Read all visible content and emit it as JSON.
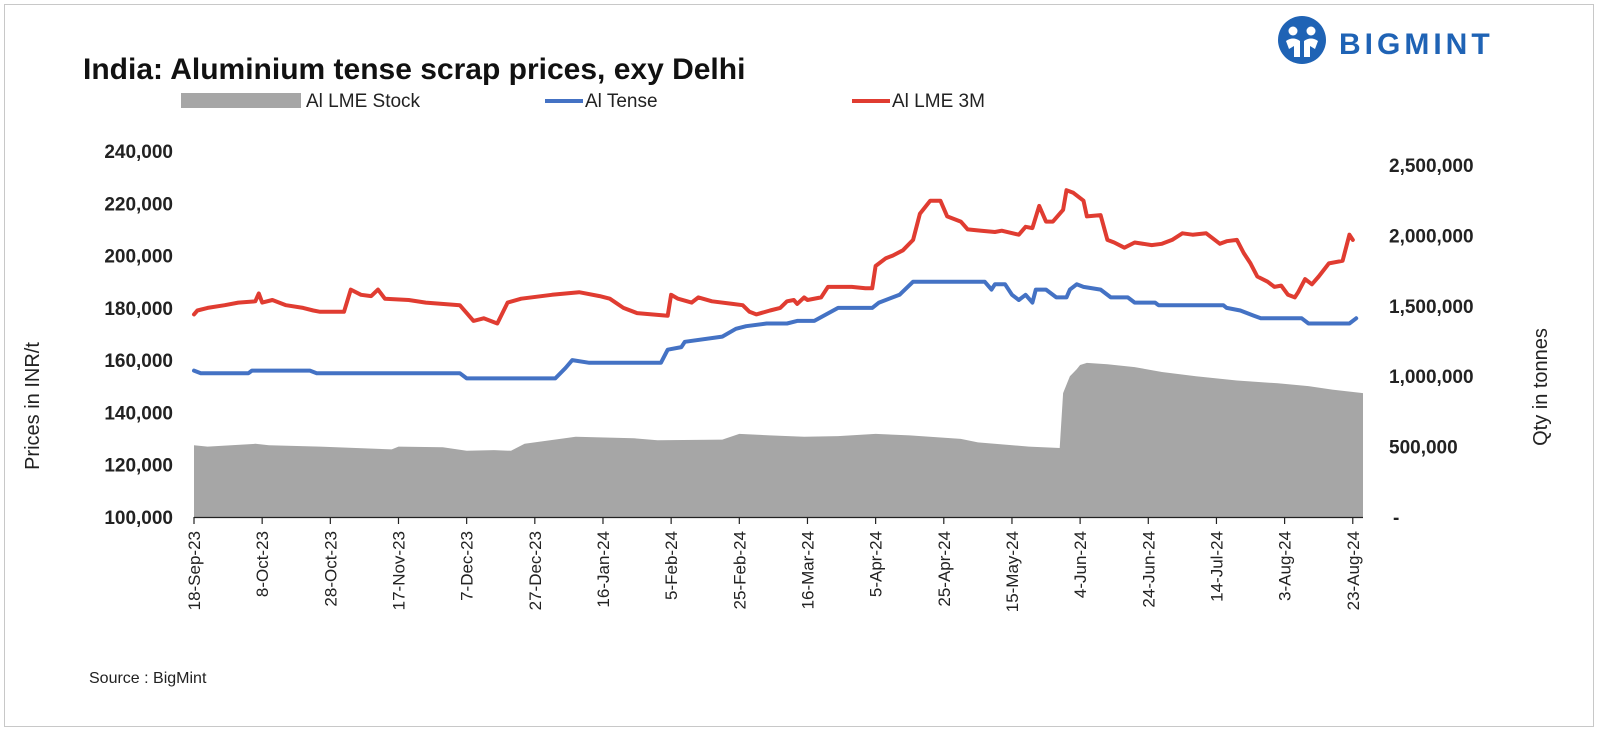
{
  "chart_data": {
    "type": "line",
    "title": "India: Aluminium tense scrap prices, exy Delhi",
    "source": "Source : BigMint",
    "brand": "BIGMINT",
    "y_left": {
      "label": "Prices in INR/t",
      "range": [
        100000,
        240000
      ],
      "ticks": [
        "100,000",
        "120,000",
        "140,000",
        "160,000",
        "180,000",
        "200,000",
        "220,000",
        "240,000"
      ]
    },
    "y_right": {
      "label": "Qty in tonnes",
      "range": [
        0,
        2600000
      ],
      "ticks": [
        {
          "value": 0,
          "label": "-"
        },
        {
          "value": 500000,
          "label": "500,000"
        },
        {
          "value": 1000000,
          "label": "1,000,000"
        },
        {
          "value": 1500000,
          "label": "1,500,000"
        },
        {
          "value": 2000000,
          "label": "2,000,000"
        },
        {
          "value": 2500000,
          "label": "2,500,000"
        }
      ]
    },
    "x_range": [
      "2023-09-18",
      "2024-08-26"
    ],
    "x_ticks": [
      {
        "date": "2023-09-18",
        "label": "18-Sep-23"
      },
      {
        "date": "2023-10-08",
        "label": "8-Oct-23"
      },
      {
        "date": "2023-10-28",
        "label": "28-Oct-23"
      },
      {
        "date": "2023-11-17",
        "label": "17-Nov-23"
      },
      {
        "date": "2023-12-07",
        "label": "7-Dec-23"
      },
      {
        "date": "2023-12-27",
        "label": "27-Dec-23"
      },
      {
        "date": "2024-01-16",
        "label": "16-Jan-24"
      },
      {
        "date": "2024-02-05",
        "label": "5-Feb-24"
      },
      {
        "date": "2024-02-25",
        "label": "25-Feb-24"
      },
      {
        "date": "2024-03-16",
        "label": "16-Mar-24"
      },
      {
        "date": "2024-04-05",
        "label": "5-Apr-24"
      },
      {
        "date": "2024-04-25",
        "label": "25-Apr-24"
      },
      {
        "date": "2024-05-15",
        "label": "15-May-24"
      },
      {
        "date": "2024-06-04",
        "label": "4-Jun-24"
      },
      {
        "date": "2024-06-24",
        "label": "24-Jun-24"
      },
      {
        "date": "2024-07-14",
        "label": "14-Jul-24"
      },
      {
        "date": "2024-08-03",
        "label": "3-Aug-24"
      },
      {
        "date": "2024-08-23",
        "label": "23-Aug-24"
      }
    ],
    "series": [
      {
        "name": "Al LME Stock",
        "type": "area",
        "axis": "right",
        "color": "#a6a6a6",
        "points": [
          [
            "2023-09-18",
            510000
          ],
          [
            "2023-09-22",
            500000
          ],
          [
            "2023-10-06",
            520000
          ],
          [
            "2023-10-10",
            510000
          ],
          [
            "2023-10-25",
            500000
          ],
          [
            "2023-11-15",
            480000
          ],
          [
            "2023-11-17",
            500000
          ],
          [
            "2023-11-30",
            495000
          ],
          [
            "2023-12-07",
            470000
          ],
          [
            "2023-12-15",
            475000
          ],
          [
            "2023-12-20",
            470000
          ],
          [
            "2023-12-24",
            520000
          ],
          [
            "2024-01-08",
            570000
          ],
          [
            "2024-01-25",
            560000
          ],
          [
            "2024-02-01",
            545000
          ],
          [
            "2024-02-20",
            550000
          ],
          [
            "2024-02-25",
            590000
          ],
          [
            "2024-03-05",
            580000
          ],
          [
            "2024-03-15",
            570000
          ],
          [
            "2024-03-25",
            575000
          ],
          [
            "2024-04-05",
            590000
          ],
          [
            "2024-04-15",
            580000
          ],
          [
            "2024-04-30",
            555000
          ],
          [
            "2024-05-05",
            530000
          ],
          [
            "2024-05-20",
            500000
          ],
          [
            "2024-05-29",
            490000
          ],
          [
            "2024-05-30",
            880000
          ],
          [
            "2024-06-01",
            1000000
          ],
          [
            "2024-06-03",
            1050000
          ],
          [
            "2024-06-04",
            1080000
          ],
          [
            "2024-06-06",
            1095000
          ],
          [
            "2024-06-12",
            1085000
          ],
          [
            "2024-06-20",
            1065000
          ],
          [
            "2024-06-28",
            1030000
          ],
          [
            "2024-07-08",
            1000000
          ],
          [
            "2024-07-20",
            970000
          ],
          [
            "2024-08-01",
            950000
          ],
          [
            "2024-08-10",
            930000
          ],
          [
            "2024-08-17",
            905000
          ],
          [
            "2024-08-26",
            880000
          ]
        ]
      },
      {
        "name": "Al Tense",
        "type": "line",
        "axis": "left",
        "color": "#4472c4",
        "points": [
          [
            "2023-09-18",
            156000
          ],
          [
            "2023-09-20",
            155000
          ],
          [
            "2023-10-04",
            155000
          ],
          [
            "2023-10-05",
            156000
          ],
          [
            "2023-10-22",
            156000
          ],
          [
            "2023-10-24",
            155000
          ],
          [
            "2023-12-05",
            155000
          ],
          [
            "2023-12-07",
            153000
          ],
          [
            "2024-01-02",
            153000
          ],
          [
            "2024-01-05",
            157000
          ],
          [
            "2024-01-07",
            160000
          ],
          [
            "2024-01-12",
            159000
          ],
          [
            "2024-02-02",
            159000
          ],
          [
            "2024-02-04",
            164000
          ],
          [
            "2024-02-08",
            165000
          ],
          [
            "2024-02-09",
            167000
          ],
          [
            "2024-02-20",
            169000
          ],
          [
            "2024-02-24",
            172000
          ],
          [
            "2024-02-27",
            173000
          ],
          [
            "2024-03-04",
            174000
          ],
          [
            "2024-03-10",
            174000
          ],
          [
            "2024-03-13",
            175000
          ],
          [
            "2024-03-18",
            175000
          ],
          [
            "2024-03-25",
            180000
          ],
          [
            "2024-04-04",
            180000
          ],
          [
            "2024-04-06",
            182000
          ],
          [
            "2024-04-12",
            185000
          ],
          [
            "2024-04-16",
            190000
          ],
          [
            "2024-04-17",
            190000
          ],
          [
            "2024-05-07",
            190000
          ],
          [
            "2024-05-09",
            187000
          ],
          [
            "2024-05-10",
            189000
          ],
          [
            "2024-05-13",
            189000
          ],
          [
            "2024-05-15",
            185000
          ],
          [
            "2024-05-17",
            183000
          ],
          [
            "2024-05-19",
            185000
          ],
          [
            "2024-05-21",
            182000
          ],
          [
            "2024-05-22",
            187000
          ],
          [
            "2024-05-25",
            187000
          ],
          [
            "2024-05-28",
            184000
          ],
          [
            "2024-05-31",
            184000
          ],
          [
            "2024-06-01",
            187000
          ],
          [
            "2024-06-03",
            189000
          ],
          [
            "2024-06-05",
            188000
          ],
          [
            "2024-06-10",
            187000
          ],
          [
            "2024-06-13",
            184000
          ],
          [
            "2024-06-18",
            184000
          ],
          [
            "2024-06-20",
            182000
          ],
          [
            "2024-06-26",
            182000
          ],
          [
            "2024-06-27",
            181000
          ],
          [
            "2024-07-16",
            181000
          ],
          [
            "2024-07-17",
            180000
          ],
          [
            "2024-07-21",
            179000
          ],
          [
            "2024-07-25",
            177000
          ],
          [
            "2024-07-27",
            176000
          ],
          [
            "2024-08-08",
            176000
          ],
          [
            "2024-08-10",
            174000
          ],
          [
            "2024-08-22",
            174000
          ],
          [
            "2024-08-24",
            176000
          ]
        ]
      },
      {
        "name": "Al LME 3M",
        "type": "line",
        "axis": "left",
        "color": "#e03c31",
        "points": [
          [
            "2023-09-18",
            177500
          ],
          [
            "2023-09-19",
            179000
          ],
          [
            "2023-09-22",
            180000
          ],
          [
            "2023-09-27",
            181000
          ],
          [
            "2023-10-01",
            182000
          ],
          [
            "2023-10-06",
            182500
          ],
          [
            "2023-10-07",
            185500
          ],
          [
            "2023-10-08",
            182000
          ],
          [
            "2023-10-11",
            183000
          ],
          [
            "2023-10-13",
            182000
          ],
          [
            "2023-10-15",
            181000
          ],
          [
            "2023-10-20",
            180000
          ],
          [
            "2023-10-23",
            179000
          ],
          [
            "2023-10-25",
            178500
          ],
          [
            "2023-11-01",
            178500
          ],
          [
            "2023-11-03",
            187000
          ],
          [
            "2023-11-06",
            185000
          ],
          [
            "2023-11-09",
            184500
          ],
          [
            "2023-11-11",
            187000
          ],
          [
            "2023-11-13",
            183500
          ],
          [
            "2023-11-20",
            183000
          ],
          [
            "2023-11-25",
            182000
          ],
          [
            "2023-12-05",
            181000
          ],
          [
            "2023-12-07",
            178000
          ],
          [
            "2023-12-09",
            175000
          ],
          [
            "2023-12-12",
            176000
          ],
          [
            "2023-12-16",
            174000
          ],
          [
            "2023-12-19",
            182000
          ],
          [
            "2023-12-23",
            183500
          ],
          [
            "2024-01-01",
            185000
          ],
          [
            "2024-01-09",
            186000
          ],
          [
            "2024-01-15",
            184500
          ],
          [
            "2024-01-18",
            183500
          ],
          [
            "2024-01-22",
            180000
          ],
          [
            "2024-01-26",
            178000
          ],
          [
            "2024-02-04",
            177000
          ],
          [
            "2024-02-05",
            185000
          ],
          [
            "2024-02-07",
            183500
          ],
          [
            "2024-02-11",
            182000
          ],
          [
            "2024-02-13",
            184000
          ],
          [
            "2024-02-17",
            182500
          ],
          [
            "2024-02-23",
            181500
          ],
          [
            "2024-02-26",
            181000
          ],
          [
            "2024-02-28",
            178500
          ],
          [
            "2024-03-01",
            177500
          ],
          [
            "2024-03-05",
            179000
          ],
          [
            "2024-03-08",
            180000
          ],
          [
            "2024-03-10",
            182500
          ],
          [
            "2024-03-12",
            183000
          ],
          [
            "2024-03-13",
            181500
          ],
          [
            "2024-03-15",
            184000
          ],
          [
            "2024-03-16",
            183000
          ],
          [
            "2024-03-20",
            184000
          ],
          [
            "2024-03-22",
            188000
          ],
          [
            "2024-03-29",
            188000
          ],
          [
            "2024-04-02",
            187500
          ],
          [
            "2024-04-04",
            187500
          ],
          [
            "2024-04-05",
            196000
          ],
          [
            "2024-04-08",
            199000
          ],
          [
            "2024-04-10",
            200000
          ],
          [
            "2024-04-13",
            202000
          ],
          [
            "2024-04-16",
            206000
          ],
          [
            "2024-04-18",
            216000
          ],
          [
            "2024-04-21",
            221000
          ],
          [
            "2024-04-24",
            221000
          ],
          [
            "2024-04-26",
            215000
          ],
          [
            "2024-04-30",
            213000
          ],
          [
            "2024-05-02",
            210000
          ],
          [
            "2024-05-06",
            209500
          ],
          [
            "2024-05-10",
            209000
          ],
          [
            "2024-05-12",
            209500
          ],
          [
            "2024-05-17",
            208000
          ],
          [
            "2024-05-19",
            211000
          ],
          [
            "2024-05-21",
            210500
          ],
          [
            "2024-05-23",
            219000
          ],
          [
            "2024-05-25",
            213000
          ],
          [
            "2024-05-27",
            213000
          ],
          [
            "2024-05-30",
            217500
          ],
          [
            "2024-05-31",
            225000
          ],
          [
            "2024-06-02",
            224000
          ],
          [
            "2024-06-05",
            221000
          ],
          [
            "2024-06-06",
            215000
          ],
          [
            "2024-06-10",
            215500
          ],
          [
            "2024-06-12",
            206000
          ],
          [
            "2024-06-14",
            205000
          ],
          [
            "2024-06-17",
            203000
          ],
          [
            "2024-06-20",
            205000
          ],
          [
            "2024-06-25",
            204000
          ],
          [
            "2024-06-28",
            204500
          ],
          [
            "2024-07-01",
            206000
          ],
          [
            "2024-07-04",
            208500
          ],
          [
            "2024-07-07",
            208000
          ],
          [
            "2024-07-11",
            208500
          ],
          [
            "2024-07-15",
            204500
          ],
          [
            "2024-07-17",
            205500
          ],
          [
            "2024-07-20",
            206000
          ],
          [
            "2024-07-22",
            201000
          ],
          [
            "2024-07-24",
            197000
          ],
          [
            "2024-07-26",
            192000
          ],
          [
            "2024-07-29",
            190000
          ],
          [
            "2024-07-31",
            188000
          ],
          [
            "2024-08-02",
            188500
          ],
          [
            "2024-08-04",
            185000
          ],
          [
            "2024-08-06",
            184000
          ],
          [
            "2024-08-07",
            186000
          ],
          [
            "2024-08-09",
            191000
          ],
          [
            "2024-08-11",
            189000
          ],
          [
            "2024-08-13",
            192000
          ],
          [
            "2024-08-16",
            197000
          ],
          [
            "2024-08-20",
            198000
          ],
          [
            "2024-08-22",
            208000
          ],
          [
            "2024-08-23",
            206000
          ]
        ]
      }
    ],
    "legend_position": "top"
  }
}
